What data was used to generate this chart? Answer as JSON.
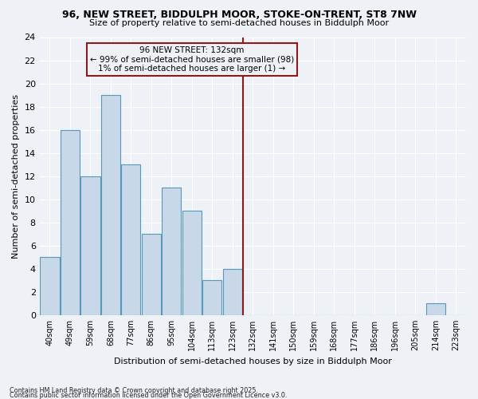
{
  "title1": "96, NEW STREET, BIDDULPH MOOR, STOKE-ON-TRENT, ST8 7NW",
  "title2": "Size of property relative to semi-detached houses in Biddulph Moor",
  "xlabel": "Distribution of semi-detached houses by size in Biddulph Moor",
  "ylabel": "Number of semi-detached properties",
  "bin_labels": [
    "40sqm",
    "49sqm",
    "59sqm",
    "68sqm",
    "77sqm",
    "86sqm",
    "95sqm",
    "104sqm",
    "113sqm",
    "123sqm",
    "132sqm",
    "141sqm",
    "150sqm",
    "159sqm",
    "168sqm",
    "177sqm",
    "186sqm",
    "196sqm",
    "205sqm",
    "214sqm",
    "223sqm"
  ],
  "counts": [
    5,
    16,
    12,
    19,
    13,
    7,
    11,
    9,
    3,
    4,
    0,
    0,
    0,
    0,
    0,
    0,
    0,
    0,
    0,
    1,
    0
  ],
  "bar_color": "#c8d8e8",
  "bar_edge_color": "#5599bb",
  "vline_bin_index": 10,
  "vline_color": "#8b1a1a",
  "annotation_title": "96 NEW STREET: 132sqm",
  "annotation_line1": "← 99% of semi-detached houses are smaller (98)",
  "annotation_line2": "1% of semi-detached houses are larger (1) →",
  "annotation_box_color": "#8b1a1a",
  "ylim": [
    0,
    24
  ],
  "yticks": [
    0,
    2,
    4,
    6,
    8,
    10,
    12,
    14,
    16,
    18,
    20,
    22,
    24
  ],
  "footer1": "Contains HM Land Registry data © Crown copyright and database right 2025.",
  "footer2": "Contains public sector information licensed under the Open Government Licence v3.0.",
  "bg_color": "#eef2f6",
  "grid_color": "#ffffff"
}
